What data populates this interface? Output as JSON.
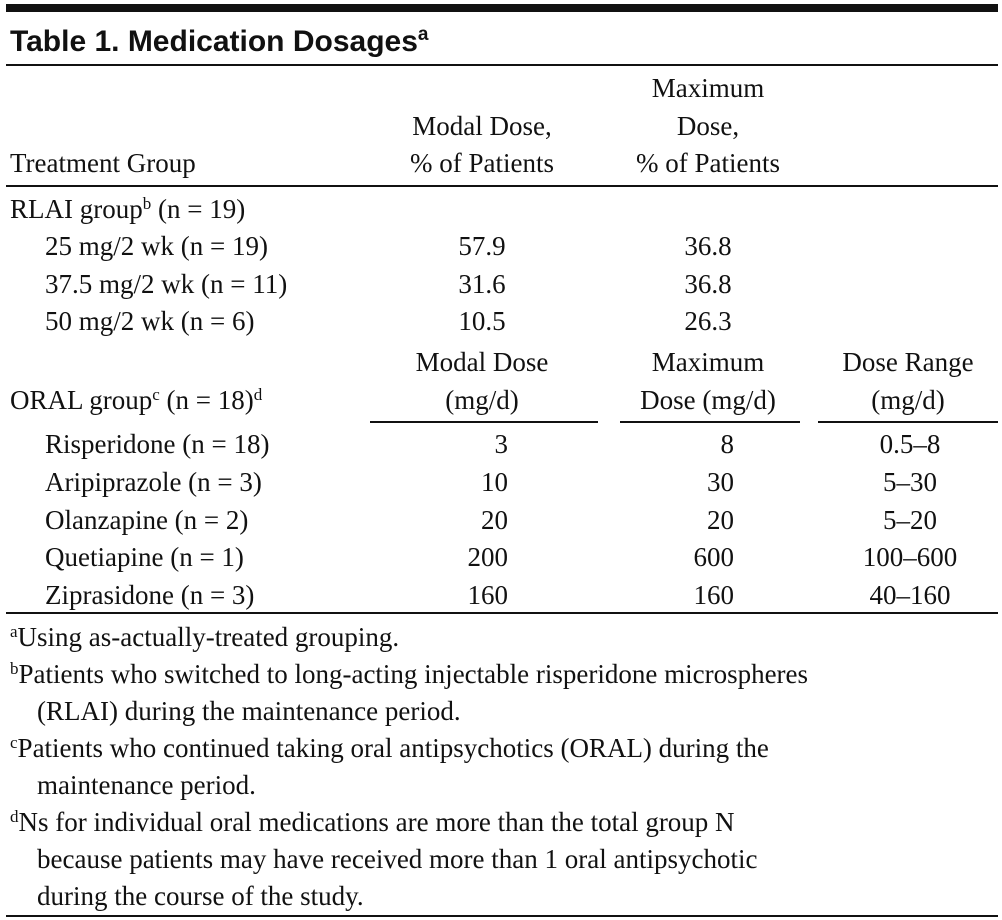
{
  "title": {
    "text": "Table 1. Medication Dosages",
    "sup": "a"
  },
  "rlai_header": {
    "treatment_group": [
      "Treatment Group"
    ],
    "modal_dose": [
      "Modal Dose,",
      "% of Patients"
    ],
    "maximum_dose": [
      "Maximum",
      "Dose,",
      "% of Patients"
    ]
  },
  "rlai_group": {
    "label": "RLAI group",
    "sup": "b",
    "n": "(n = 19)",
    "rows": [
      [
        "25 mg/2 wk (n = 19)",
        "57.9",
        "36.8"
      ],
      [
        "37.5 mg/2 wk (n = 11)",
        "31.6",
        "36.8"
      ],
      [
        "50 mg/2 wk (n = 6)",
        "10.5",
        "26.3"
      ]
    ]
  },
  "oral_group": {
    "label": "ORAL group",
    "sup": "c",
    "n": "(n = 18)",
    "sup2": "d",
    "headers": [
      [
        "Modal Dose",
        "(mg/d)"
      ],
      [
        "Maximum",
        "Dose (mg/d)"
      ],
      [
        "Dose Range",
        "(mg/d)"
      ]
    ],
    "rows": [
      [
        "Risperidone (n = 18)",
        "3",
        "8",
        "0.5–8"
      ],
      [
        "Aripiprazole (n = 3)",
        "10",
        "30",
        "5–30"
      ],
      [
        "Olanzapine (n = 2)",
        "20",
        "20",
        "5–20"
      ],
      [
        "Quetiapine (n = 1)",
        "200",
        "600",
        "100–600"
      ],
      [
        "Ziprasidone (n = 3)",
        "160",
        "160",
        "40–160"
      ]
    ]
  },
  "footnotes": [
    {
      "mark": "a",
      "lines": [
        "Using as-actually-treated grouping."
      ]
    },
    {
      "mark": "b",
      "lines": [
        "Patients who switched to long-acting injectable risperidone microspheres",
        "(RLAI) during the maintenance period."
      ]
    },
    {
      "mark": "c",
      "lines": [
        "Patients who continued taking oral antipsychotics (ORAL) during the",
        "maintenance period."
      ]
    },
    {
      "mark": "d",
      "lines": [
        "Ns for individual oral medications are more than the total group N",
        "because patients may have received more than 1 oral antipsychotic",
        "during the course of the study."
      ]
    }
  ]
}
